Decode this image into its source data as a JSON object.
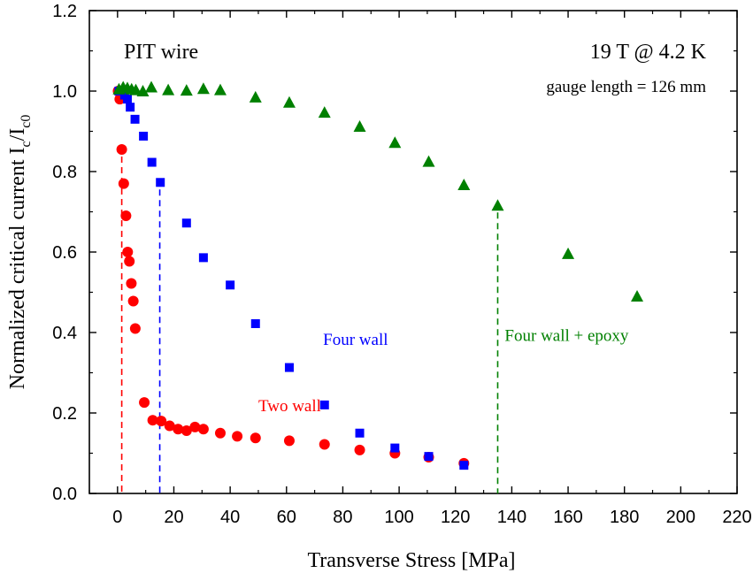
{
  "chart_data": {
    "type": "scatter",
    "xlabel": "Transverse Stress [MPa]",
    "ylabel": {
      "main": "Normalized critical current I",
      "sub1": "c",
      "mid": "/I",
      "sub2": "c0"
    },
    "xlim": [
      -10,
      220
    ],
    "ylim": [
      0.0,
      1.2
    ],
    "x_ticks": [
      0,
      20,
      40,
      60,
      80,
      100,
      120,
      140,
      160,
      180,
      200,
      220
    ],
    "y_ticks": [
      0.0,
      0.2,
      0.4,
      0.6,
      0.8,
      1.0,
      1.2
    ],
    "y_tick_labels": [
      "0.0",
      "0.2",
      "0.4",
      "0.6",
      "0.8",
      "1.0",
      "1.2"
    ],
    "grid": false,
    "annotations": {
      "top_left": "PIT wire",
      "top_right": "19 T @ 4.2 K",
      "gauge": "gauge length = 126 mm"
    },
    "colors": {
      "two_wall": "#ff0000",
      "four_wall": "#0000ff",
      "four_wall_epoxy": "#008000"
    },
    "series": [
      {
        "name": "Two wall",
        "marker": "circle",
        "color": "#ff0000",
        "label_at": [
          50,
          0.22
        ],
        "limit_line_x": 1.5,
        "points": [
          [
            0.2,
            1.0
          ],
          [
            0.8,
            0.98
          ],
          [
            1.5,
            0.855
          ],
          [
            2.2,
            0.77
          ],
          [
            3.0,
            0.69
          ],
          [
            3.6,
            0.6
          ],
          [
            4.2,
            0.577
          ],
          [
            4.9,
            0.522
          ],
          [
            5.6,
            0.478
          ],
          [
            6.3,
            0.41
          ],
          [
            9.5,
            0.226
          ],
          [
            12.5,
            0.182
          ],
          [
            15.5,
            0.18
          ],
          [
            18.5,
            0.168
          ],
          [
            21.5,
            0.16
          ],
          [
            24.5,
            0.156
          ],
          [
            27.5,
            0.165
          ],
          [
            30.5,
            0.16
          ],
          [
            36.5,
            0.15
          ],
          [
            42.5,
            0.142
          ],
          [
            49,
            0.138
          ],
          [
            61,
            0.131
          ],
          [
            73.5,
            0.122
          ],
          [
            86,
            0.108
          ],
          [
            98.5,
            0.1
          ],
          [
            110.5,
            0.09
          ],
          [
            123,
            0.075
          ]
        ]
      },
      {
        "name": "Four wall",
        "marker": "square",
        "color": "#0000ff",
        "label_at": [
          73,
          0.385
        ],
        "limit_line_x": 15,
        "points": [
          [
            0.5,
            1.0
          ],
          [
            1.5,
            1.0
          ],
          [
            2.5,
            0.99
          ],
          [
            3.5,
            0.98
          ],
          [
            4.5,
            0.96
          ],
          [
            6.2,
            0.93
          ],
          [
            9.2,
            0.888
          ],
          [
            12.2,
            0.823
          ],
          [
            15.2,
            0.773
          ],
          [
            24.5,
            0.672
          ],
          [
            30.5,
            0.586
          ],
          [
            40,
            0.518
          ],
          [
            49,
            0.422
          ],
          [
            61,
            0.313
          ],
          [
            73.5,
            0.22
          ],
          [
            86,
            0.15
          ],
          [
            98.5,
            0.113
          ],
          [
            110.5,
            0.092
          ],
          [
            123,
            0.07
          ]
        ]
      },
      {
        "name": "Four wall + epoxy",
        "marker": "triangle",
        "color": "#008000",
        "label_at": [
          137.5,
          0.395
        ],
        "limit_line_x": 135,
        "points": [
          [
            0.5,
            1.005
          ],
          [
            2,
            1.01
          ],
          [
            3.5,
            1.008
          ],
          [
            5,
            1.005
          ],
          [
            6.5,
            1.003
          ],
          [
            9,
            1.0
          ],
          [
            12,
            1.01
          ],
          [
            18,
            1.003
          ],
          [
            24.5,
            1.002
          ],
          [
            30.5,
            1.006
          ],
          [
            36.5,
            1.003
          ],
          [
            49,
            0.985
          ],
          [
            61,
            0.972
          ],
          [
            73.5,
            0.947
          ],
          [
            86,
            0.912
          ],
          [
            98.5,
            0.872
          ],
          [
            110.5,
            0.825
          ],
          [
            123,
            0.767
          ],
          [
            135,
            0.716
          ],
          [
            160,
            0.596
          ],
          [
            184.5,
            0.49
          ]
        ]
      }
    ]
  }
}
